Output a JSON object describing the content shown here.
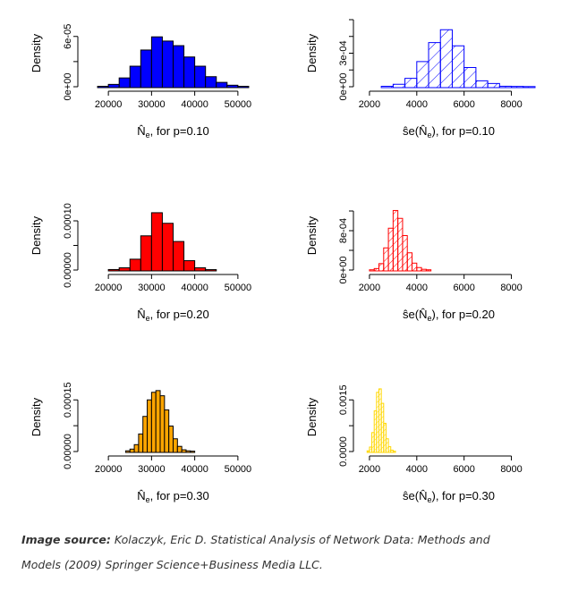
{
  "chart_data": [
    {
      "type": "bar",
      "title": "",
      "ylabel": "Density",
      "xlabel_base": "N",
      "xlabel_suffix": ", for p=0.10",
      "xlim": [
        15000,
        55000
      ],
      "ylim": [
        0,
        8e-05
      ],
      "xticks": [
        "20000",
        "30000",
        "40000",
        "50000"
      ],
      "xtick_values": [
        20000,
        30000,
        40000,
        50000
      ],
      "yticks": [
        "0e+00",
        "6e-05"
      ],
      "ytick_values": [
        0,
        6e-05
      ],
      "bin_width": 2500,
      "fill": "#0000ff",
      "hatched": false,
      "bin_starts": [
        17500,
        20000,
        22500,
        25000,
        27500,
        30000,
        32500,
        35000,
        37500,
        40000,
        42500,
        45000,
        47500,
        50000
      ],
      "values": [
        5e-07,
        2.8e-06,
        1.05e-05,
        2.45e-05,
        4.38e-05,
        5.95e-05,
        5.45e-05,
        4.9e-05,
        3.55e-05,
        2.45e-05,
        1.2e-05,
        5.2e-06,
        1.8e-06,
        5e-07
      ]
    },
    {
      "type": "bar",
      "title": "",
      "ylabel": "Density",
      "xlabel_base": "se(N)",
      "xlabel_suffix": ", for p=0.10",
      "xlim": [
        1700,
        9000
      ],
      "ylim": [
        0,
        0.0006
      ],
      "xticks": [
        "2000",
        "4000",
        "6000",
        "8000"
      ],
      "xtick_values": [
        2000,
        4000,
        6000,
        8000
      ],
      "yticks": [
        "0e+00",
        "3e-04"
      ],
      "ytick_values": [
        0,
        0.0003
      ],
      "bin_width": 500,
      "fill": "#0000ff",
      "hatched": true,
      "bin_starts": [
        2500,
        3000,
        3500,
        4000,
        4500,
        5000,
        5500,
        6000,
        6500,
        7000,
        7500,
        8000,
        8500
      ],
      "values": [
        4e-06,
        2.2e-05,
        7.5e-05,
        0.000225,
        0.000395,
        0.00051,
        0.000366,
        0.000172,
        5.3e-05,
        2.9e-05,
        4.4e-06,
        3e-06,
        1.6e-06
      ]
    },
    {
      "type": "bar",
      "title": "",
      "ylabel": "Density",
      "xlabel_base": "N",
      "xlabel_suffix": ", for p=0.20",
      "xlim": [
        15000,
        55000
      ],
      "ylim": [
        0,
        0.00014
      ],
      "xticks": [
        "20000",
        "30000",
        "40000",
        "50000"
      ],
      "xtick_values": [
        20000,
        30000,
        40000,
        50000
      ],
      "yticks": [
        "0.00000",
        "0.00010"
      ],
      "ytick_values": [
        0,
        0.0001
      ],
      "bin_width": 2500,
      "fill": "#ff0000",
      "hatched": false,
      "bin_starts": [
        20000,
        22500,
        25000,
        27500,
        30000,
        32500,
        35000,
        37500,
        40000,
        42500
      ],
      "values": [
        1e-06,
        4.5e-06,
        2.2e-05,
        6.95e-05,
        0.0001165,
        9.5e-05,
        5.8e-05,
        1.9e-05,
        4.5e-06,
        8e-07
      ]
    },
    {
      "type": "bar",
      "title": "",
      "ylabel": "Density",
      "xlabel_base": "se(N)",
      "xlabel_suffix": ", for p=0.20",
      "xlim": [
        1700,
        9000
      ],
      "ylim": [
        0,
        0.0014
      ],
      "xticks": [
        "2000",
        "4000",
        "6000",
        "8000"
      ],
      "xtick_values": [
        2000,
        4000,
        6000,
        8000
      ],
      "yticks": [
        "0e+00",
        "8e-04"
      ],
      "ytick_values": [
        0,
        0.0008
      ],
      "bin_width": 200,
      "fill": "#ff0000",
      "hatched": true,
      "bin_starts": [
        2000,
        2200,
        2400,
        2600,
        2800,
        3000,
        3200,
        3400,
        3600,
        3800,
        4000,
        4200,
        4400
      ],
      "values": [
        5e-06,
        3e-05,
        0.00013,
        0.00045,
        0.00085,
        0.00121,
        0.00105,
        0.0007,
        0.00035,
        0.00014,
        5e-05,
        1.5e-05,
        5e-06
      ]
    },
    {
      "type": "bar",
      "title": "",
      "ylabel": "Density",
      "xlabel_base": "N",
      "xlabel_suffix": ", for p=0.30",
      "xlim": [
        15000,
        55000
      ],
      "ylim": [
        0,
        0.0002
      ],
      "xticks": [
        "20000",
        "30000",
        "40000",
        "50000"
      ],
      "xtick_values": [
        20000,
        30000,
        40000,
        50000
      ],
      "yticks": [
        "0.00000",
        "0.00015"
      ],
      "ytick_values": [
        0,
        0.00015
      ],
      "bin_width": 1000,
      "fill": "#ffa500",
      "hatched": false,
      "bin_starts": [
        24000,
        25000,
        26000,
        27000,
        28000,
        29000,
        30000,
        31000,
        32000,
        33000,
        34000,
        35000,
        36000,
        37000,
        38000,
        39000
      ],
      "values": [
        2e-06,
        7e-06,
        2e-05,
        5.1e-05,
        0.000102,
        0.00015,
        0.000172,
        0.000177,
        0.000162,
        0.000121,
        7.4e-05,
        3.7e-05,
        1.5e-05,
        5e-06,
        2e-06,
        1e-06
      ]
    },
    {
      "type": "bar",
      "title": "",
      "ylabel": "Density",
      "xlabel_base": "se(N)",
      "xlabel_suffix": ", for p=0.30",
      "xlim": [
        1700,
        9000
      ],
      "ylim": [
        0,
        0.002
      ],
      "xticks": [
        "2000",
        "4000",
        "6000",
        "8000"
      ],
      "xtick_values": [
        2000,
        4000,
        6000,
        8000
      ],
      "yticks": [
        "0.0000",
        "0.0015"
      ],
      "ytick_values": [
        0,
        0.0015
      ],
      "bin_width": 100,
      "fill": "#ffd700",
      "hatched": true,
      "bin_starts": [
        1900,
        2000,
        2100,
        2200,
        2300,
        2400,
        2500,
        2600,
        2700,
        2800,
        2900,
        3000
      ],
      "values": [
        2e-05,
        0.00013,
        0.00055,
        0.00118,
        0.00172,
        0.00182,
        0.0014,
        0.00082,
        0.00037,
        0.00014,
        4e-05,
        1e-05
      ]
    }
  ],
  "caption": {
    "line1_bold": "Image source:",
    "line1_text": " Kolaczyk, Eric D. Statistical Analysis of Network Data: Methods and",
    "line2_text": "Models (2009) Springer Science+Business Media LLC."
  }
}
